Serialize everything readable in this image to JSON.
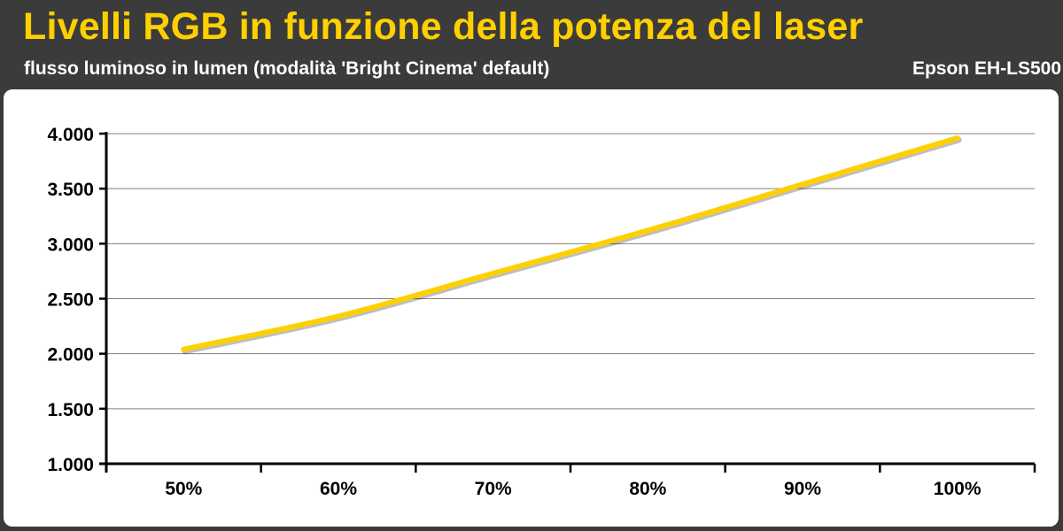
{
  "header": {
    "title": "Livelli RGB in funzione della potenza del laser",
    "subtitle": "flusso luminoso in lumen (modalità 'Bright Cinema' default)",
    "brand": "Epson EH-LS500"
  },
  "chart_data": {
    "type": "line",
    "title": "Livelli RGB in funzione della potenza del laser",
    "subtitle": "flusso luminoso in lumen (modalità 'Bright Cinema' default)",
    "categories": [
      "50%",
      "60%",
      "70%",
      "80%",
      "90%",
      "100%"
    ],
    "series": [
      {
        "values": [
          2040,
          2340,
          2730,
          3120,
          3540,
          3960
        ],
        "color": "#ffd000"
      }
    ],
    "y_ticks": [
      "1.000",
      "1.500",
      "2.000",
      "2.500",
      "3.000",
      "3.500",
      "4.000"
    ],
    "y_tick_values": [
      1000,
      1500,
      2000,
      2500,
      3000,
      3500,
      4000
    ],
    "ylim": [
      1000,
      4000
    ],
    "grid": true,
    "legend": "none"
  }
}
